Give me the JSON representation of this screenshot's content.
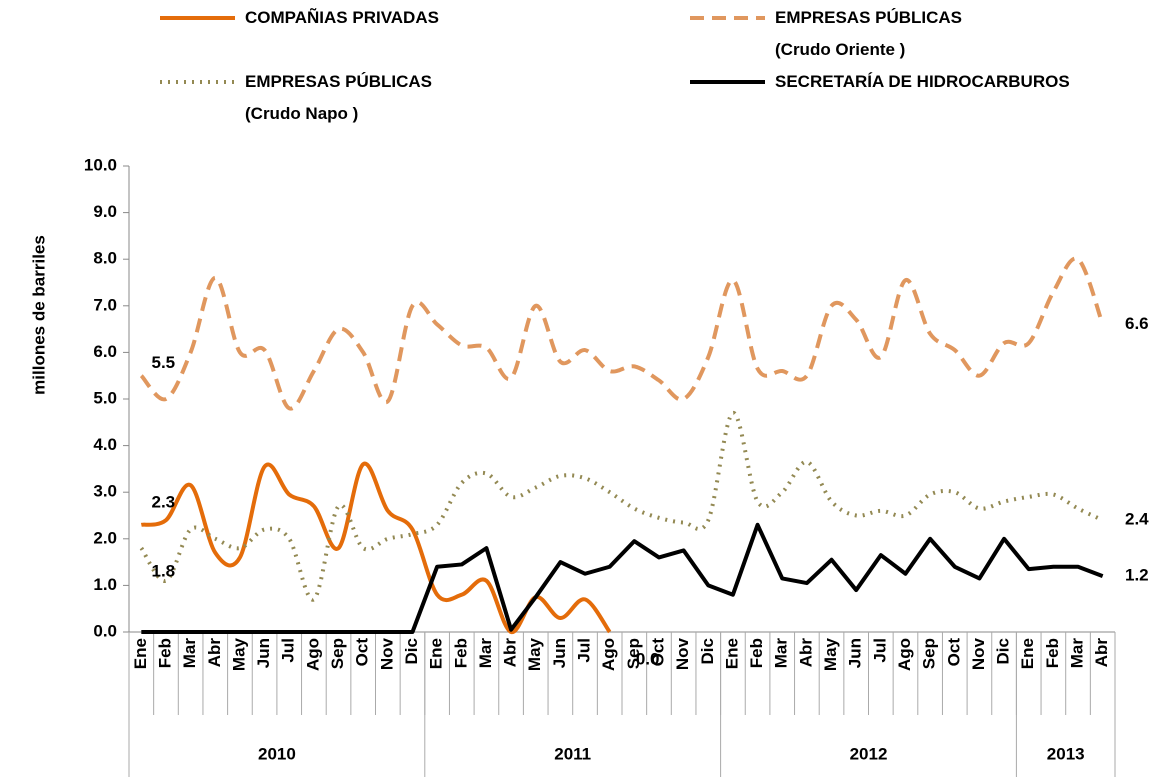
{
  "chart_data": {
    "type": "line",
    "y_label": "millones de barriles",
    "categories": [
      "Ene",
      "Feb",
      "Mar",
      "Abr",
      "May",
      "Jun",
      "Jul",
      "Ago",
      "Sep",
      "Oct",
      "Nov",
      "Dic",
      "Ene",
      "Feb",
      "Mar",
      "Abr",
      "May",
      "Jun",
      "Jul",
      "Ago",
      "Sep",
      "Oct",
      "Nov",
      "Dic",
      "Ene",
      "Feb",
      "Mar",
      "Abr",
      "May",
      "Jun",
      "Jul",
      "Ago",
      "Sep",
      "Oct",
      "Nov",
      "Dic",
      "Ene",
      "Feb",
      "Mar",
      "Abr"
    ],
    "groups": [
      {
        "label": "2010",
        "count": 12
      },
      {
        "label": "2011",
        "count": 12
      },
      {
        "label": "2012",
        "count": 12
      },
      {
        "label": "2013",
        "count": 4
      }
    ],
    "ylim": [
      0,
      10
    ],
    "yticks": [
      {
        "value": 0,
        "label": "0.0"
      },
      {
        "value": 1,
        "label": "1.0"
      },
      {
        "value": 2,
        "label": "2.0"
      },
      {
        "value": 3,
        "label": "3.0"
      },
      {
        "value": 4,
        "label": "4.0"
      },
      {
        "value": 5,
        "label": "5.0"
      },
      {
        "value": 6,
        "label": "6.0"
      },
      {
        "value": 7,
        "label": "7.0"
      },
      {
        "value": 8,
        "label": "8.0"
      },
      {
        "value": 9,
        "label": "9.0"
      },
      {
        "value": 10,
        "label": "10.0"
      }
    ],
    "series": [
      {
        "name": "COMPAÑIAS PRIVADAS",
        "color": "#e46c0a",
        "dash": "solid",
        "smooth": true,
        "values": [
          2.3,
          2.4,
          3.15,
          1.7,
          1.6,
          3.55,
          2.95,
          2.7,
          1.8,
          3.6,
          2.6,
          2.2,
          0.8,
          0.8,
          1.1,
          0.0,
          0.75,
          0.3,
          0.7,
          0.0,
          null,
          null,
          null,
          null,
          null,
          null,
          null,
          null,
          null,
          null,
          null,
          null,
          null,
          null,
          null,
          null,
          null,
          null,
          null,
          null
        ],
        "value_labels": [
          "2.3",
          null,
          null,
          null,
          null,
          null,
          null,
          null,
          null,
          null,
          null,
          null,
          null,
          null,
          null,
          null,
          null,
          null,
          null,
          "0.0",
          null,
          null,
          null,
          null,
          null,
          null,
          null,
          null,
          null,
          null,
          null,
          null,
          null,
          null,
          null,
          null,
          null,
          null,
          null,
          null
        ]
      },
      {
        "name": "EMPRESAS PÚBLICAS\n(Crudo Oriente )",
        "color": "#e0975e",
        "dash": "dashed",
        "smooth": true,
        "values": [
          5.5,
          5.0,
          6.0,
          7.6,
          6.0,
          6.05,
          4.8,
          5.6,
          6.5,
          6.0,
          4.95,
          7.0,
          6.6,
          6.15,
          6.1,
          5.45,
          7.0,
          5.8,
          6.05,
          5.6,
          5.7,
          5.4,
          5.0,
          5.9,
          7.55,
          5.65,
          5.6,
          5.5,
          7.0,
          6.7,
          5.9,
          7.55,
          6.4,
          6.05,
          5.5,
          6.2,
          6.2,
          7.3,
          8.0,
          6.6
        ],
        "value_labels": [
          "5.5",
          null,
          null,
          null,
          null,
          null,
          null,
          null,
          null,
          null,
          null,
          null,
          null,
          null,
          null,
          null,
          null,
          null,
          null,
          null,
          null,
          null,
          null,
          null,
          null,
          null,
          null,
          null,
          null,
          null,
          null,
          null,
          null,
          null,
          null,
          null,
          null,
          null,
          null,
          "6.6"
        ]
      },
      {
        "name": "EMPRESAS PÚBLICAS\n(Crudo Napo )",
        "color": "#938953",
        "dash": "dotted",
        "smooth": true,
        "values": [
          1.8,
          1.1,
          2.2,
          2.0,
          1.8,
          2.2,
          2.0,
          0.7,
          2.7,
          1.8,
          2.0,
          2.1,
          2.3,
          3.2,
          3.4,
          2.9,
          3.1,
          3.35,
          3.3,
          3.0,
          2.65,
          2.45,
          2.35,
          2.4,
          4.7,
          2.8,
          3.0,
          3.65,
          2.8,
          2.5,
          2.6,
          2.5,
          2.95,
          3.0,
          2.65,
          2.8,
          2.9,
          2.95,
          2.65,
          2.4
        ],
        "value_labels": [
          "1.8",
          null,
          null,
          null,
          null,
          null,
          null,
          null,
          null,
          null,
          null,
          null,
          null,
          null,
          null,
          null,
          null,
          null,
          null,
          null,
          null,
          null,
          null,
          null,
          null,
          null,
          null,
          null,
          null,
          null,
          null,
          null,
          null,
          null,
          null,
          null,
          null,
          null,
          null,
          "2.4"
        ]
      },
      {
        "name": "SECRETARÍA DE HIDROCARBUROS",
        "color": "#000000",
        "dash": "solid",
        "smooth": false,
        "values": [
          0,
          0,
          0,
          0,
          0,
          0,
          0,
          0,
          0,
          0,
          0,
          0,
          1.4,
          1.45,
          1.8,
          0.05,
          0.75,
          1.5,
          1.25,
          1.4,
          1.95,
          1.6,
          1.75,
          1.0,
          0.8,
          2.3,
          1.15,
          1.05,
          1.55,
          0.9,
          1.65,
          1.25,
          2.0,
          1.4,
          1.15,
          2.0,
          1.35,
          1.4,
          1.4,
          1.2
        ],
        "value_labels": [
          null,
          null,
          null,
          null,
          null,
          null,
          null,
          null,
          null,
          null,
          null,
          null,
          null,
          null,
          null,
          null,
          null,
          null,
          null,
          null,
          null,
          null,
          null,
          null,
          null,
          null,
          null,
          null,
          null,
          null,
          null,
          null,
          null,
          null,
          null,
          null,
          null,
          null,
          null,
          "1.2"
        ]
      }
    ]
  }
}
